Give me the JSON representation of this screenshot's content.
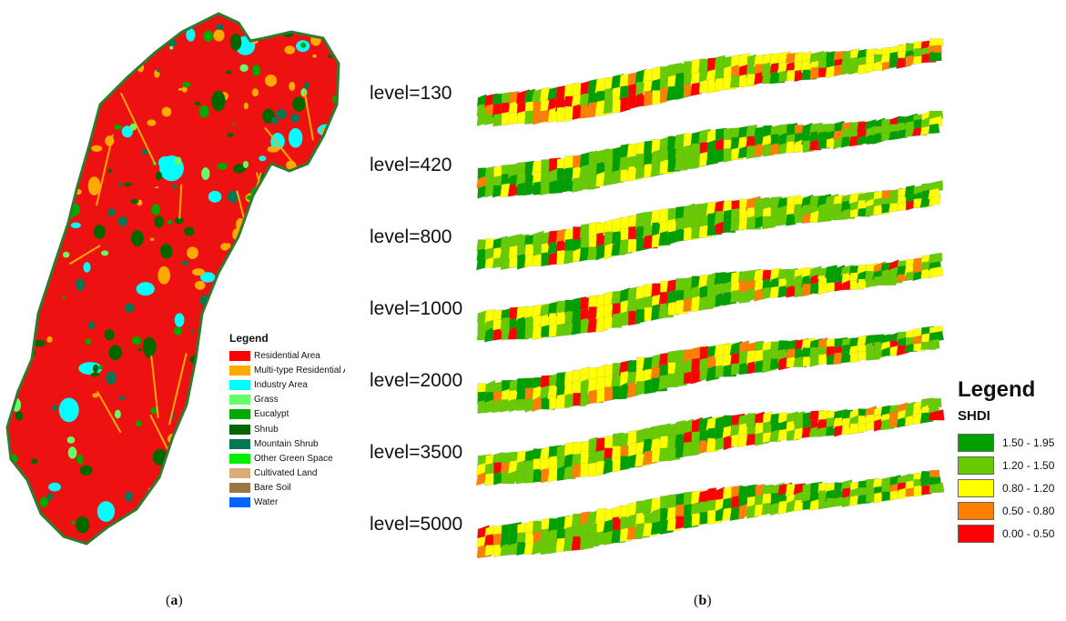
{
  "panel_a": {
    "caption_open": "(",
    "caption_letter": "a",
    "caption_close": ")",
    "legend_title": "Legend",
    "legend": [
      {
        "label": "Residential Area",
        "color": "#ff0000"
      },
      {
        "label": "Multi-type Residential Area",
        "color": "#ffaa00"
      },
      {
        "label": "Industry Area",
        "color": "#00ffff"
      },
      {
        "label": "Grass",
        "color": "#66ff66"
      },
      {
        "label": "Eucalypt",
        "color": "#00aa00"
      },
      {
        "label": "Shrub",
        "color": "#006600"
      },
      {
        "label": "Mountain Shrub",
        "color": "#007755"
      },
      {
        "label": "Other Green Space",
        "color": "#00ee00"
      },
      {
        "label": "Cultivated Land",
        "color": "#ddaa77"
      },
      {
        "label": "Bare Soil",
        "color": "#997744"
      },
      {
        "label": "Water",
        "color": "#0066ff"
      }
    ]
  },
  "panel_b": {
    "caption_open": "(",
    "caption_letter": "b",
    "caption_close": ")",
    "levels": [
      "level=130",
      "level=420",
      "level=800",
      "level=1000",
      "level=2000",
      "level=3500",
      "level=5000"
    ],
    "legend_title": "Legend",
    "legend_subtitle": "SHDI",
    "legend": [
      {
        "label": "1.50 - 1.95",
        "color": "#00a000"
      },
      {
        "label": "1.20 - 1.50",
        "color": "#66cc00"
      },
      {
        "label": "0.80 - 1.20",
        "color": "#ffff00"
      },
      {
        "label": "0.50 - 0.80",
        "color": "#ff8000"
      },
      {
        "label": "0.00 - 0.50",
        "color": "#ff0000"
      }
    ]
  }
}
